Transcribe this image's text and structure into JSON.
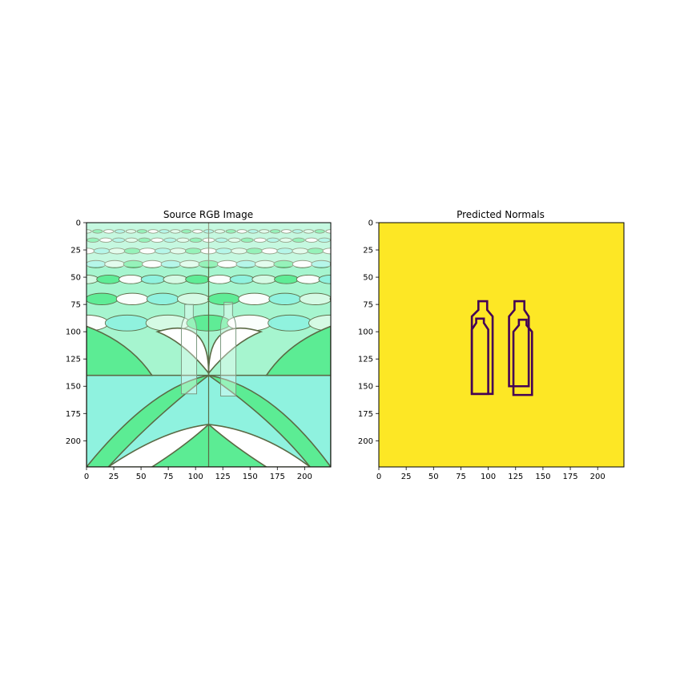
{
  "figure": {
    "background": "#ffffff"
  },
  "panels": [
    {
      "title": "Source RGB Image",
      "kind": "photo",
      "colors": {
        "tile_light": "#d8fbe6",
        "tile_mid": "#a6f5cf",
        "tile_green": "#5cec94",
        "tile_cyan": "#8ff2df",
        "seam": "#5b6a45",
        "white": "#ffffff"
      }
    },
    {
      "title": "Predicted Normals",
      "kind": "mask",
      "colors": {
        "background": "#fde725",
        "outline": "#440154"
      }
    }
  ],
  "chart_data": [
    {
      "type": "heatmap",
      "title": "Source RGB Image",
      "xlabel": "",
      "ylabel": "",
      "xlim": [
        0,
        224
      ],
      "ylim": [
        224,
        0
      ],
      "xticks": [
        0,
        25,
        50,
        75,
        100,
        125,
        150,
        175,
        200
      ],
      "yticks": [
        0,
        25,
        50,
        75,
        100,
        125,
        150,
        175,
        200
      ],
      "grid": false
    },
    {
      "type": "heatmap",
      "title": "Predicted Normals",
      "xlabel": "",
      "ylabel": "",
      "xlim": [
        0,
        224
      ],
      "ylim": [
        224,
        0
      ],
      "xticks": [
        0,
        25,
        50,
        75,
        100,
        125,
        150,
        175,
        200
      ],
      "yticks": [
        0,
        25,
        50,
        75,
        100,
        125,
        150,
        175,
        200
      ],
      "grid": false,
      "colormap": "viridis",
      "values": {
        "background": 1,
        "bottle_outline": 0
      },
      "objects": [
        {
          "name": "left bottle (back)",
          "neck_top_y": 72,
          "shoulder_y": 83,
          "bottom_y": 157,
          "neck_x": [
            91,
            99
          ],
          "body_x": [
            85,
            104
          ]
        },
        {
          "name": "left bottle (front)",
          "neck_top_y": 88,
          "shoulder_y": 95,
          "bottom_y": 157,
          "neck_x": [
            89,
            96
          ],
          "body_x": [
            85,
            100
          ]
        },
        {
          "name": "right bottle (back)",
          "neck_top_y": 72,
          "shoulder_y": 83,
          "bottom_y": 150,
          "neck_x": [
            124,
            133
          ],
          "body_x": [
            119,
            137
          ]
        },
        {
          "name": "right bottle (front)",
          "neck_top_y": 89,
          "shoulder_y": 97,
          "bottom_y": 158,
          "neck_x": [
            128,
            135
          ],
          "body_x": [
            123,
            140
          ]
        }
      ]
    }
  ]
}
